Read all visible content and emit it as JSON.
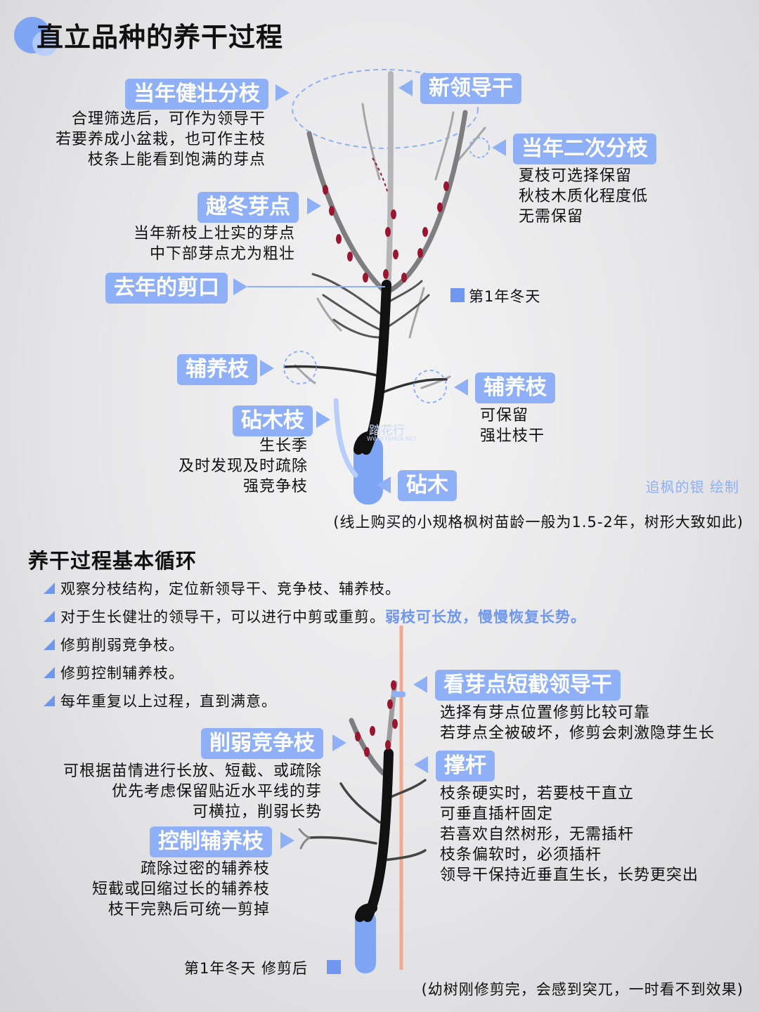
{
  "title": "直立品种的养干过程",
  "top": {
    "tag_strong_branch": "当年健壮分枝",
    "desc_strong_branch": [
      "合理筛选后，可作为领导干",
      "若要养成小盆栽，也可作主枝",
      "枝条上能看到饱满的芽点"
    ],
    "tag_new_leader": "新领导干",
    "tag_secondary_branch": "当年二次分枝",
    "desc_secondary_branch": [
      "夏枝可选择保留",
      "秋枝木质化程度低",
      "无需保留"
    ],
    "tag_winter_bud": "越冬芽点",
    "desc_winter_bud": [
      "当年新枝上壮实的芽点",
      "中下部芽点尤为粗壮"
    ],
    "tag_last_cut": "去年的剪口",
    "legend_first_winter": "第1年冬天",
    "tag_nurse_left": "辅养枝",
    "tag_nurse_right": "辅养枝",
    "desc_nurse_right": [
      "可保留",
      "强壮枝干"
    ],
    "tag_rootstock_branch": "砧木枝",
    "desc_rootstock_branch": [
      "生长季",
      "及时发现及时疏除",
      "强竞争枝"
    ],
    "tag_rootstock": "砧木",
    "credit": "追枫的银 绘制",
    "note": "(线上购买的小规格枫树苗龄一般为1.5-2年，树形大致如此)",
    "watermark": "踏花行",
    "watermark_url": "WWW.TAHUA.NET"
  },
  "cycle": {
    "heading": "养干过程基本循环",
    "steps": [
      {
        "text": "观察分枝结构，定位新领导干、竞争枝、辅养枝。",
        "highlight": ""
      },
      {
        "text": "对于生长健壮的领导干，可以进行中剪或重剪。",
        "highlight": "弱枝可长放，慢慢恢复长势。"
      },
      {
        "text": "修剪削弱竞争枝。",
        "highlight": ""
      },
      {
        "text": "修剪控制辅养枝。",
        "highlight": ""
      },
      {
        "text": "每年重复以上过程，直到满意。",
        "highlight": ""
      }
    ]
  },
  "bottom": {
    "tag_cut_leader": "看芽点短截领导干",
    "desc_cut_leader": [
      "选择有芽点位置修剪比较可靠",
      "若芽点全被破坏，修剪会刺激隐芽生长"
    ],
    "tag_weaken": "削弱竞争枝",
    "desc_weaken": [
      "可根据苗情进行长放、短截、或疏除",
      "优先考虑保留贴近水平线的芽",
      "可横拉，削弱长势"
    ],
    "tag_stake": "撑杆",
    "desc_stake": [
      "枝条硬实时，若要枝干直立",
      "可垂直插杆固定",
      "若喜欢自然树形，无需插杆",
      "枝条偏软时，必须插杆",
      "领导干保持近垂直生长，长势更突出"
    ],
    "tag_control": "控制辅养枝",
    "desc_control": [
      "疏除过密的辅养枝",
      "短截或回缩过长的辅养枝",
      "枝干完熟后可统一剪掉"
    ],
    "legend_after": "第1年冬天 修剪后",
    "note": "(幼树刚修剪完，会感到突兀，一时看不到效果)"
  },
  "colors": {
    "accent": "#8fb0f6",
    "accent_dark": "#6f97ef",
    "trunk": "#111111",
    "branch_gray": "#808080",
    "bud": "#9a1530",
    "stake": "#f2a990",
    "rootstock": "#7ea4f4"
  }
}
